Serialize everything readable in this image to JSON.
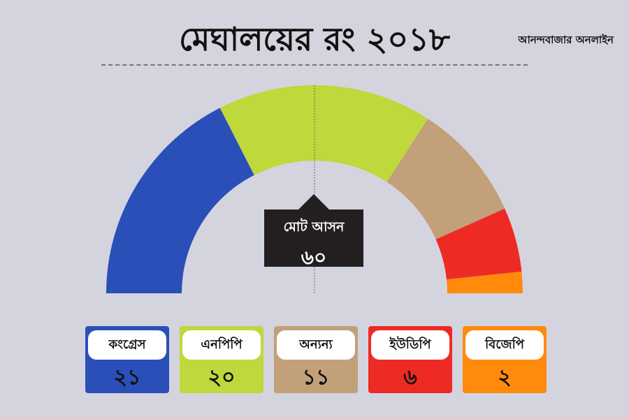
{
  "title": "মেঘালয়ের রং ২০১৮",
  "source": "আনন্দবাজার অনলাইন",
  "total": {
    "label": "মোট আসন",
    "value": "৬০"
  },
  "chart_data": {
    "type": "pie",
    "title": "মেঘালয়ের রং ২০১৮",
    "total_seats": 60,
    "slices": [
      {
        "name": "কংগ্রেস",
        "label": "২১",
        "value": 21,
        "color": "#2a4fb8"
      },
      {
        "name": "এনপিপি",
        "label": "২০",
        "value": 20,
        "color": "#bfd83c"
      },
      {
        "name": "অন্যন্য",
        "label": "১১",
        "value": 11,
        "color": "#c1a07a"
      },
      {
        "name": "ইউডিপি",
        "label": "৬",
        "value": 6,
        "color": "#ee2a24"
      },
      {
        "name": "বিজেপি",
        "label": "২",
        "value": 2,
        "color": "#ff8a0c"
      }
    ]
  }
}
